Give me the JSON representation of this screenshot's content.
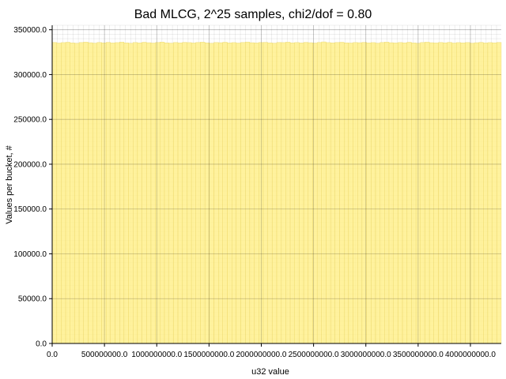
{
  "chart_data": {
    "type": "bar",
    "title": "Bad MLCG, 2^25 samples, chi2/dof = 0.80",
    "xlabel": "u32 value",
    "ylabel": "Values per bucket, #",
    "xlim": [
      0,
      4294967296
    ],
    "ylim": [
      0,
      355000
    ],
    "xticks": [
      0,
      500000000,
      1000000000,
      1500000000,
      2000000000,
      2500000000,
      3000000000,
      3500000000,
      4000000000
    ],
    "xtick_labels": [
      "0.0",
      "500000000.0",
      "1000000000.0",
      "1500000000.0",
      "2000000000.0",
      "2500000000.0",
      "3000000000.0",
      "3500000000.0",
      "4000000000.0"
    ],
    "yticks": [
      0,
      50000,
      100000,
      150000,
      200000,
      250000,
      300000,
      350000
    ],
    "ytick_labels": [
      "0.0",
      "50000.0",
      "100000.0",
      "150000.0",
      "200000.0",
      "250000.0",
      "300000.0",
      "350000.0"
    ],
    "grid": true,
    "num_buckets": 100,
    "bar_color": "#fff08c",
    "bar_edge_color": "#e6cf5a",
    "values": [
      335900,
      335200,
      335700,
      336100,
      335400,
      335000,
      335800,
      336300,
      335600,
      335100,
      335900,
      335400,
      336000,
      335300,
      335700,
      336200,
      335500,
      334900,
      335800,
      335400,
      336100,
      335600,
      335200,
      335900,
      336300,
      335500,
      335100,
      335800,
      335400,
      336000,
      335700,
      335300,
      335900,
      336200,
      335500,
      335000,
      335800,
      335600,
      336100,
      335400,
      335700,
      335200,
      335900,
      336400,
      335600,
      335300,
      335800,
      336000,
      335500,
      335100,
      335900,
      335700,
      336200,
      335400,
      335800,
      335300,
      336000,
      335600,
      335200,
      335900,
      336500,
      335700,
      335400,
      335900,
      336100,
      335500,
      335200,
      335800,
      335600,
      336000,
      335400,
      335700,
      335100,
      335900,
      336300,
      335600,
      335300,
      335800,
      335500,
      336100,
      335400,
      335000,
      335800,
      336200,
      335600,
      335300,
      335900,
      335500,
      336000,
      335200,
      335700,
      335400,
      335800,
      335100,
      335600,
      336000,
      335300,
      335700,
      335500,
      335900
    ]
  }
}
